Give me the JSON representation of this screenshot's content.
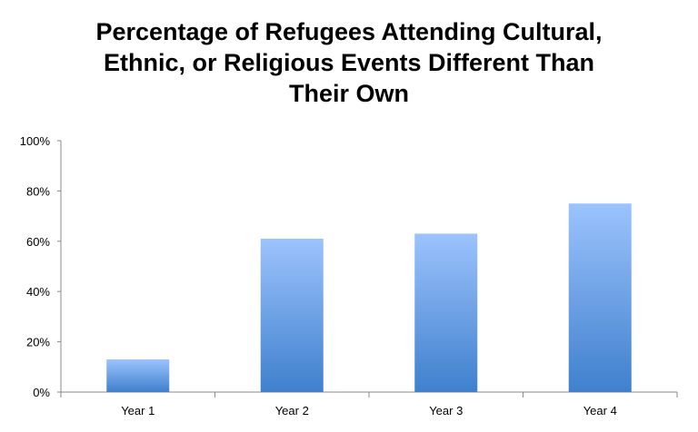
{
  "chart_data": {
    "type": "bar",
    "title_lines": [
      "Percentage of Refugees Attending Cultural,",
      "Ethnic, or Religious Events Different Than",
      "Their Own"
    ],
    "categories": [
      "Year 1",
      "Year 2",
      "Year 3",
      "Year 4"
    ],
    "values": [
      13,
      61,
      63,
      75
    ],
    "ylim": [
      0,
      100
    ],
    "yticks": [
      "0%",
      "20%",
      "40%",
      "60%",
      "80%",
      "100%"
    ],
    "grid": false,
    "bar_color_top": "#9cc3fd",
    "bar_color_bottom": "#3f80cd"
  }
}
